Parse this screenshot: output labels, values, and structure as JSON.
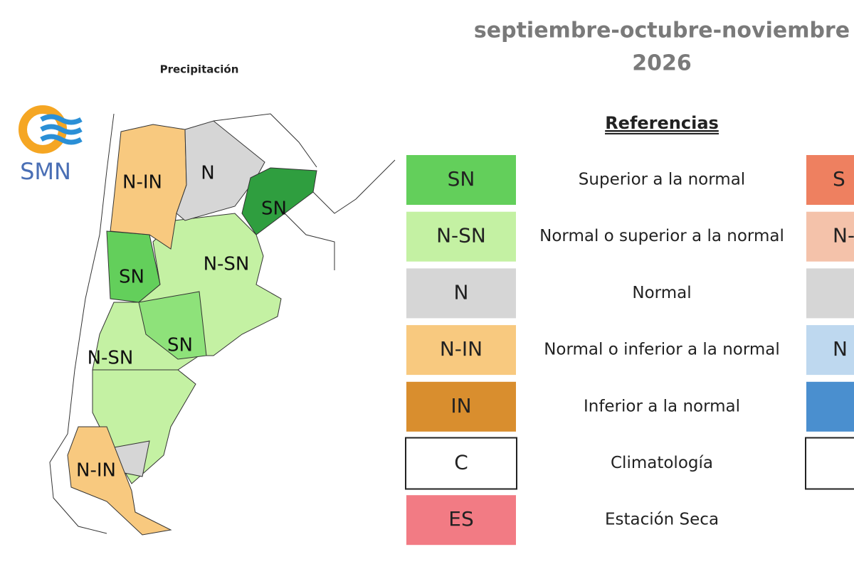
{
  "header": {
    "title": "septiembre-octubre-noviembre",
    "year": "2026"
  },
  "logo": {
    "text": "SMN"
  },
  "map": {
    "title": "Precipitación",
    "labels": [
      "N-IN",
      "N",
      "SN",
      "SN",
      "N-SN",
      "SN",
      "N-SN",
      "N-IN"
    ]
  },
  "legend": {
    "title": "Referencias",
    "items": [
      {
        "code": "SN",
        "label": "Superior a la normal",
        "color": "#63cf5b"
      },
      {
        "code": "N-SN",
        "label": "Normal o superior a la normal",
        "color": "#c4f1a3"
      },
      {
        "code": "N",
        "label": "Normal",
        "color": "#d6d6d6"
      },
      {
        "code": "N-IN",
        "label": "Normal o inferior a la normal",
        "color": "#f8c97f"
      },
      {
        "code": "IN",
        "label": "Inferior a la normal",
        "color": "#d98e2e"
      },
      {
        "code": "C",
        "label": "Climatología",
        "color": "#ffffff"
      },
      {
        "code": "ES",
        "label": "Estación Seca",
        "color": "#f27b84"
      }
    ],
    "extra_items": [
      {
        "code": "S",
        "color": "#ee8060"
      },
      {
        "code": "N-",
        "color": "#f4c2aa"
      },
      {
        "color": "#d6d6d6"
      },
      {
        "code": "N",
        "color": "#bed8ef"
      },
      {
        "color": "#4a8fcf"
      },
      {
        "color": "#ffffff"
      }
    ]
  }
}
